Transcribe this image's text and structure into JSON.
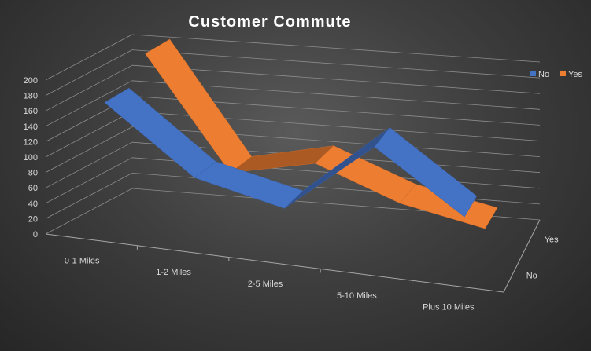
{
  "chart_data": {
    "type": "line",
    "title": "Customer Commute",
    "categories": [
      "0-1 Miles",
      "1-2 Miles",
      "2-5 Miles",
      "5-10 Miles",
      "Plus 10 Miles"
    ],
    "series": [
      {
        "name": "No",
        "values": [
          168,
          84,
          58,
          150,
          74
        ]
      },
      {
        "name": "Yes",
        "values": [
          200,
          56,
          78,
          37,
          15
        ]
      }
    ],
    "depth_labels": [
      "Yes",
      "No"
    ],
    "legend": {
      "position": "top-right",
      "entries": [
        "No",
        "Yes"
      ]
    },
    "y_ticks": [
      0,
      20,
      40,
      60,
      80,
      100,
      120,
      140,
      160,
      180,
      200
    ],
    "ylim": [
      0,
      200
    ],
    "grid": true,
    "colors": {
      "No": "#4472c4",
      "Yes": "#ed7d31"
    },
    "xlabel": "",
    "ylabel": ""
  }
}
